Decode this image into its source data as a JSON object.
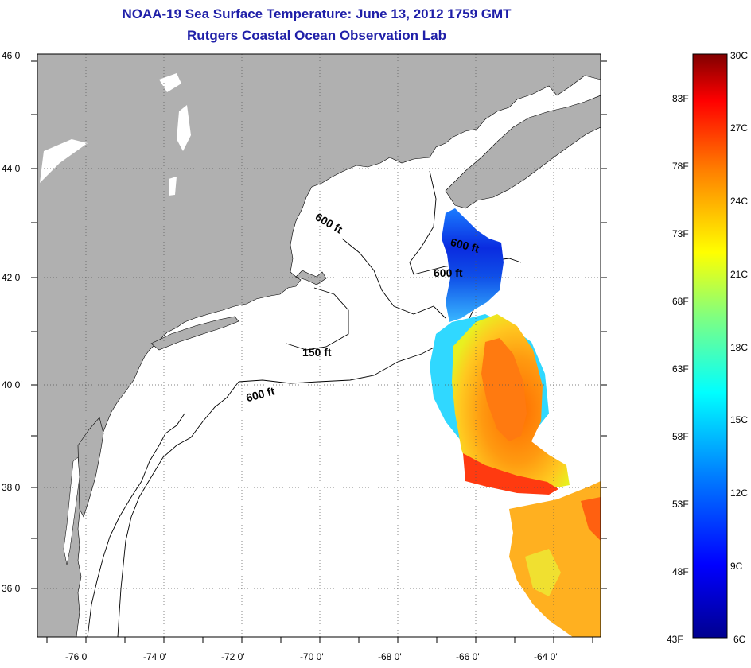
{
  "title": {
    "line1": "NOAA-19 Sea Surface Temperature:  June 13, 2012 1759 GMT",
    "line2": "Rutgers Coastal Ocean Observation Lab"
  },
  "map": {
    "longitude_ticks": [
      "-76 0'",
      "-74 0'",
      "-72 0'",
      "-70 0'",
      "-68 0'",
      "-66 0'",
      "-64 0'"
    ],
    "latitude_ticks": [
      "46 0'",
      "44 0'",
      "42 0'",
      "40 0'",
      "38 0'",
      "36 0'"
    ],
    "land_color": "#b0b0b0",
    "ocean_color": "#ffffff",
    "contour_labels": [
      {
        "text": "600 ft"
      },
      {
        "text": "600 ft"
      },
      {
        "text": "600 ft"
      },
      {
        "text": "150 ft"
      },
      {
        "text": "600 ft"
      }
    ]
  },
  "colorbar": {
    "fahrenheit_labels": [
      "83F",
      "78F",
      "73F",
      "68F",
      "63F",
      "58F",
      "53F",
      "48F",
      "43F"
    ],
    "celsius_labels": [
      "30C",
      "27C",
      "24C",
      "21C",
      "18C",
      "15C",
      "12C",
      "9C",
      "6C"
    ],
    "colors": [
      "#00008f",
      "#0000ff",
      "#0080ff",
      "#00ffff",
      "#80ff80",
      "#ffff00",
      "#ff8000",
      "#ff0000",
      "#800000"
    ]
  }
}
